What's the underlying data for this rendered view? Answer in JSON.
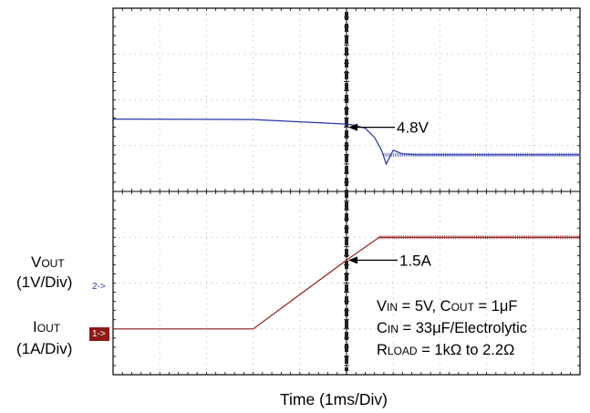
{
  "chart_data": {
    "type": "line",
    "xlabel": "Time (1ms/Div)",
    "x_unit": "ms",
    "xlim": [
      0,
      10
    ],
    "grid": true,
    "series": [
      {
        "color": "#2a35a5",
        "x": [
          0,
          3.0,
          4.0,
          5.0,
          5.2,
          5.4,
          5.6,
          5.75,
          5.85,
          6.0,
          6.2,
          6.5,
          7.0,
          10.0
        ],
        "y": [
          4.98,
          4.97,
          4.92,
          4.87,
          4.84,
          4.78,
          4.58,
          4.3,
          4.0,
          4.3,
          4.22,
          4.2,
          4.2,
          4.2
        ],
        "line_width": 1.2
      },
      {
        "color": "#8b1a1a",
        "x": [
          0,
          3.0,
          5.0,
          5.7,
          6.0,
          6.5,
          8.0,
          10.0
        ],
        "y": [
          0,
          0,
          1.5,
          2.0,
          2.0,
          2.0,
          2.0,
          2.0
        ],
        "line_width": 1.2
      }
    ],
    "annotations": [
      {
        "text": "4.8V",
        "x": 5.0,
        "y": 4.8
      },
      {
        "text": "1.5A",
        "x": 5.0,
        "y": 1.5
      }
    ]
  },
  "labels": {
    "vout_main": "V",
    "vout_sub": "OUT",
    "vout_scale": "(1V/Div)",
    "iout_main": "I",
    "iout_sub": "OUT",
    "iout_scale": "(1A/Div)",
    "marker_ch2": "2->",
    "marker_ch1": "1->"
  },
  "conditions": {
    "vin_main": "V",
    "vin_sub": "IN",
    "vin_val": " = 5V, C",
    "cout_sub": "OUT",
    "cout_val": " = 1μF",
    "cin_main": "C",
    "cin_sub": "IN",
    "cin_val": " = 33μF/Electrolytic",
    "rload_main": "R",
    "rload_sub": "LOAD",
    "rload_val": " = 1kΩ to 2.2Ω"
  },
  "colors": {
    "ch2": "#2a35a5",
    "ch1": "#8b1a1a",
    "cursor": "#222222"
  }
}
